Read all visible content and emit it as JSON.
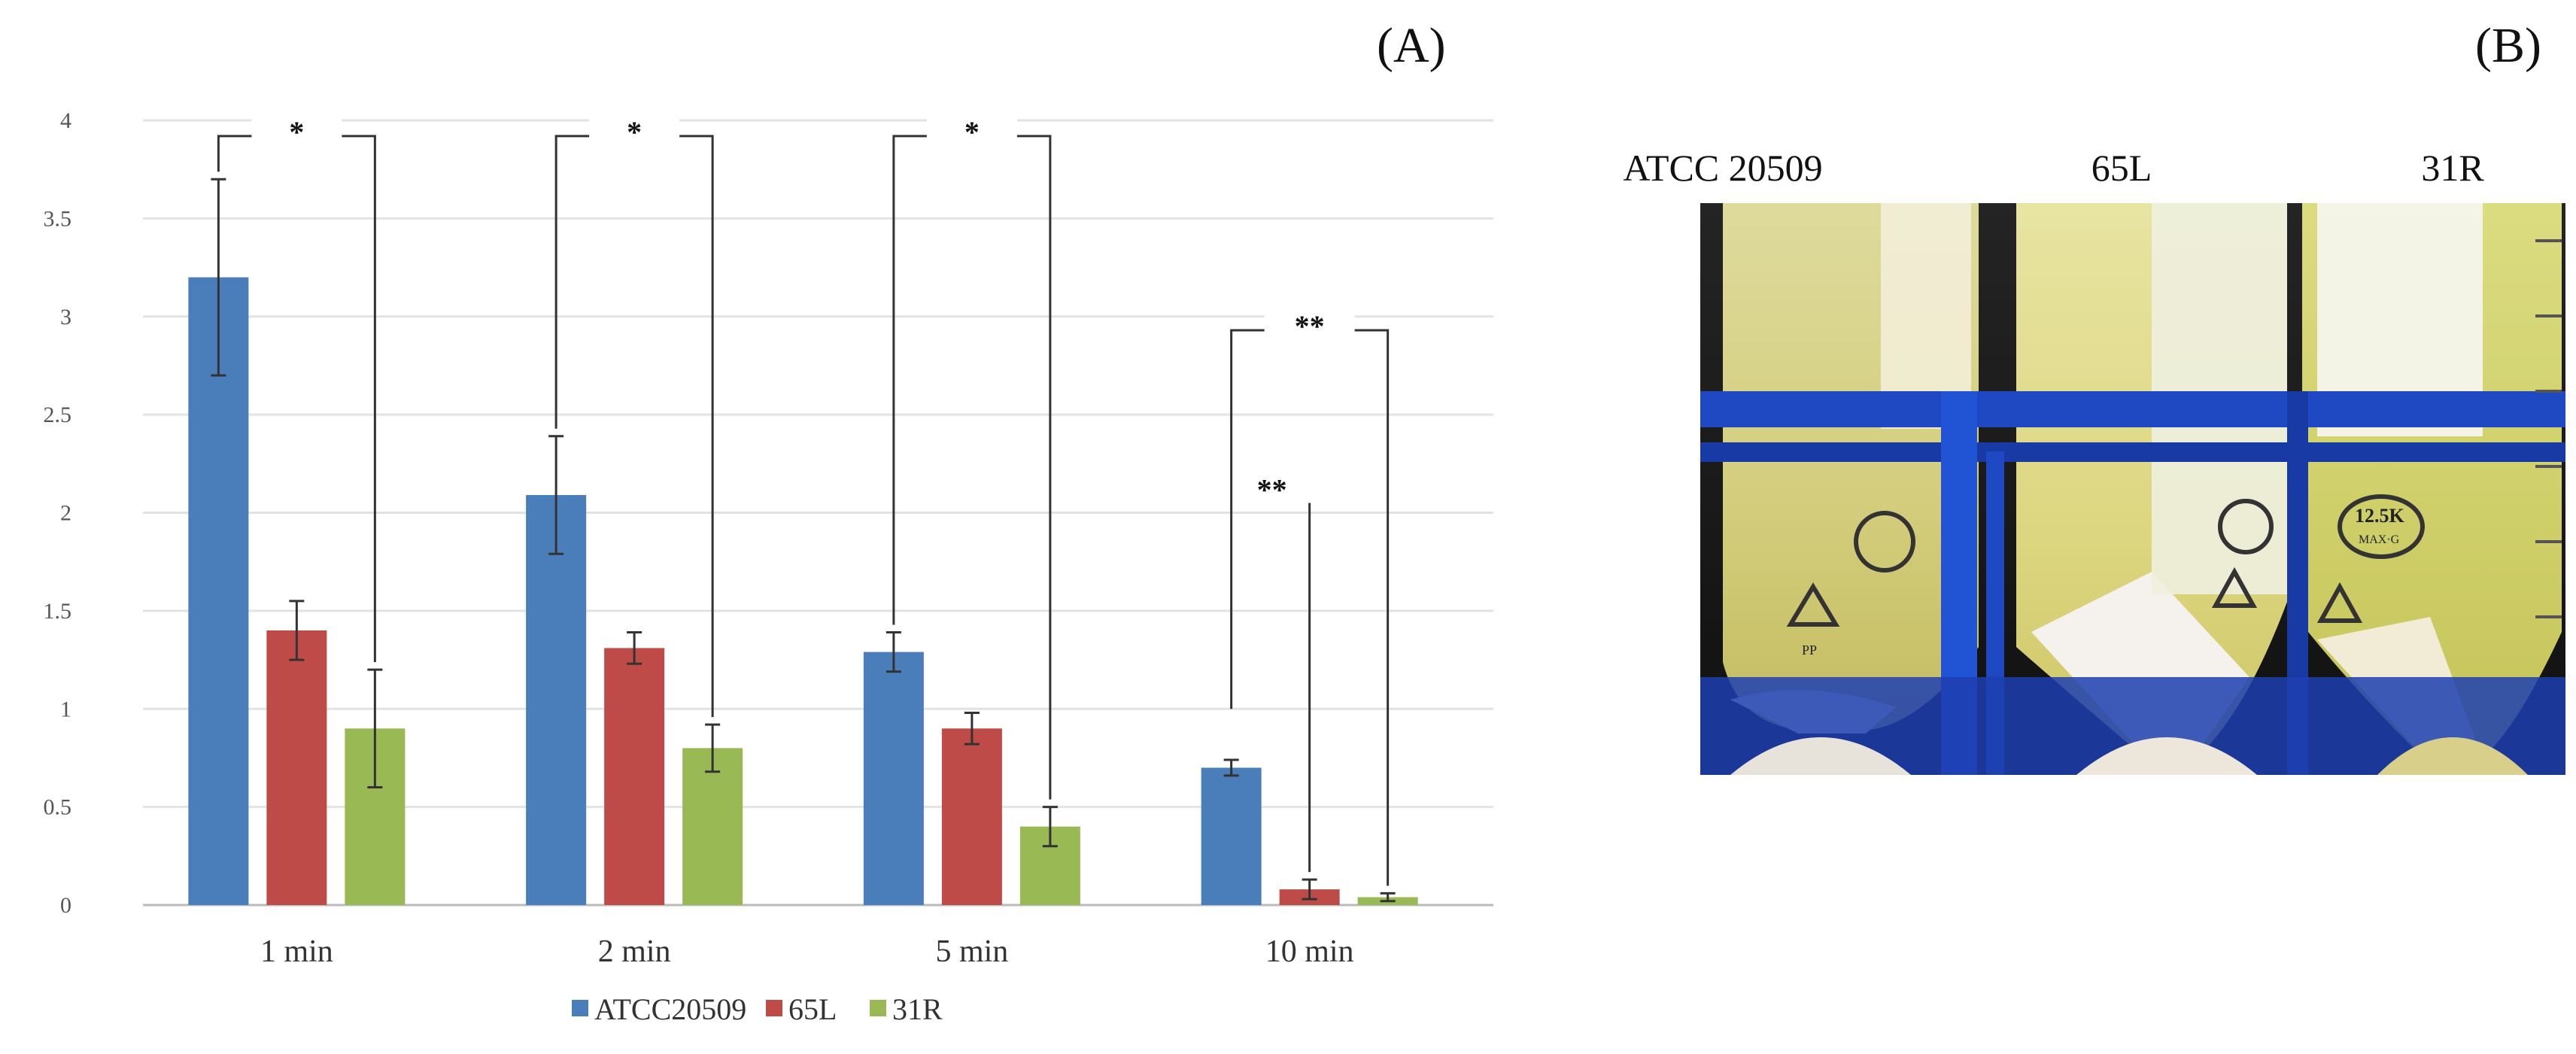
{
  "panel_a_label": "(A)",
  "panel_b_label": "(B)",
  "chart_data": {
    "type": "bar",
    "title": "",
    "xlabel": "",
    "ylabel": "",
    "ylim": [
      0,
      4
    ],
    "yticks": [
      "0",
      "0.5",
      "1",
      "1.5",
      "2",
      "2.5",
      "3",
      "3.5",
      "4"
    ],
    "grid": true,
    "legend_position": "bottom",
    "categories": [
      "1 min",
      "2 min",
      "5 min",
      "10 min"
    ],
    "series": [
      {
        "name": "ATCC20509",
        "color": "#4a7ebb",
        "values": [
          3.2,
          2.09,
          1.29,
          0.7
        ],
        "errors": [
          0.5,
          0.3,
          0.1,
          0.04
        ]
      },
      {
        "name": "65L",
        "color": "#be4b48",
        "values": [
          1.4,
          1.31,
          0.9,
          0.08
        ],
        "errors": [
          0.15,
          0.08,
          0.08,
          0.05
        ]
      },
      {
        "name": "31R",
        "color": "#98b954",
        "values": [
          0.9,
          0.8,
          0.4,
          0.04
        ],
        "errors": [
          0.3,
          0.12,
          0.1,
          0.02
        ]
      }
    ],
    "significance": [
      {
        "category": 0,
        "from_series": 0,
        "to_series": 2,
        "label": "*"
      },
      {
        "category": 1,
        "from_series": 0,
        "to_series": 2,
        "label": "*"
      },
      {
        "category": 2,
        "from_series": 0,
        "to_series": 2,
        "label": "*"
      },
      {
        "category": 3,
        "from_series": 0,
        "to_series": 2,
        "label": "**"
      },
      {
        "category": 3,
        "from_series": 1,
        "to_series": 1,
        "label": "**"
      }
    ]
  },
  "photo": {
    "labels": [
      "ATCC 20509",
      "65L",
      "31R"
    ],
    "tube_markings": [
      "12.5K",
      "MAX·G",
      "PP"
    ]
  }
}
